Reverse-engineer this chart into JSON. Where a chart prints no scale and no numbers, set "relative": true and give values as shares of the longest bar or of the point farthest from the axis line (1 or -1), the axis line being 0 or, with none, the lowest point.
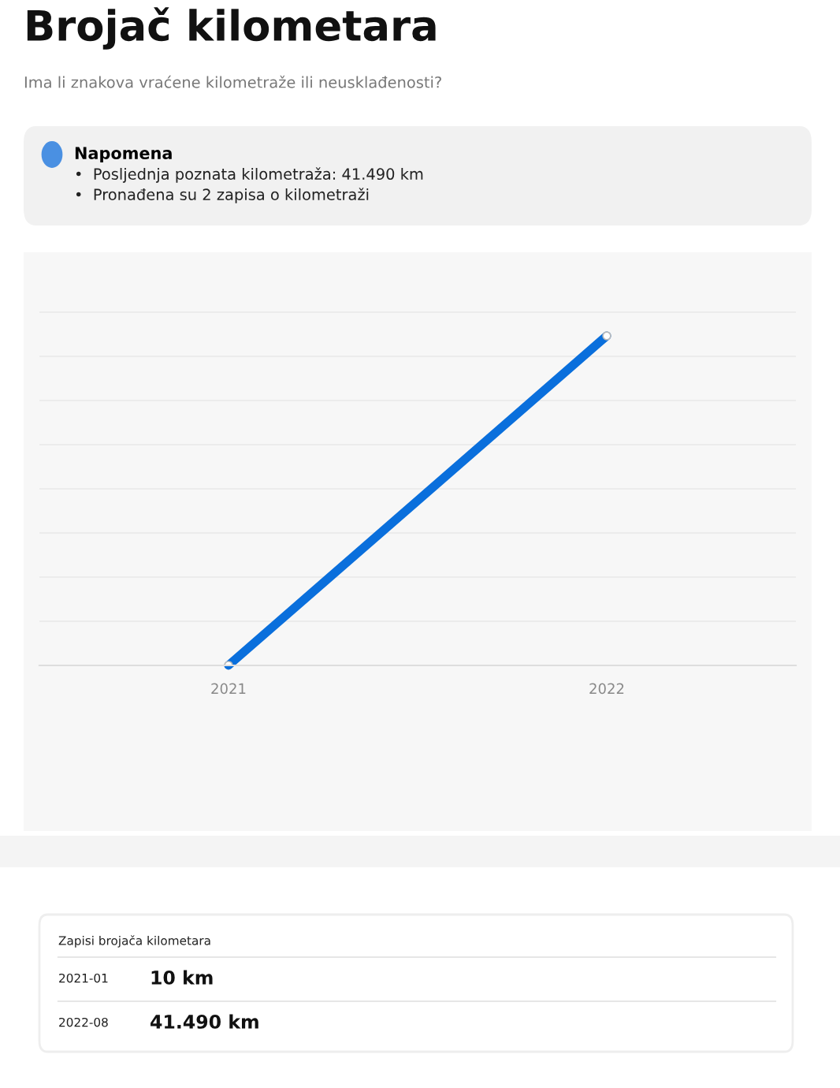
{
  "chart_data": {
    "type": "line",
    "title": "Brojač kilometara",
    "subtitle": "Ima li znakova vraćene kilometraže ili neusklađenosti?",
    "annotations": [
      "Napomena",
      "•  Posljednja poznata kilometraža: 41.490 km",
      "•  Pronađena su 2 zapisa o kilometraži",
      "Zapisi brojača kilometara",
      "2021-01",
      "10 km",
      "2022-08",
      "41.490 km"
    ],
    "categories": [
      "2021",
      "2022"
    ],
    "relative": true,
    "series": [
      {
        "color": "#0a6fdc",
        "values": [
          0.00024,
          1
        ]
      }
    ],
    "grid": "y",
    "tick_labels": "x",
    "marker": "circle",
    "line_style": "solid"
  }
}
